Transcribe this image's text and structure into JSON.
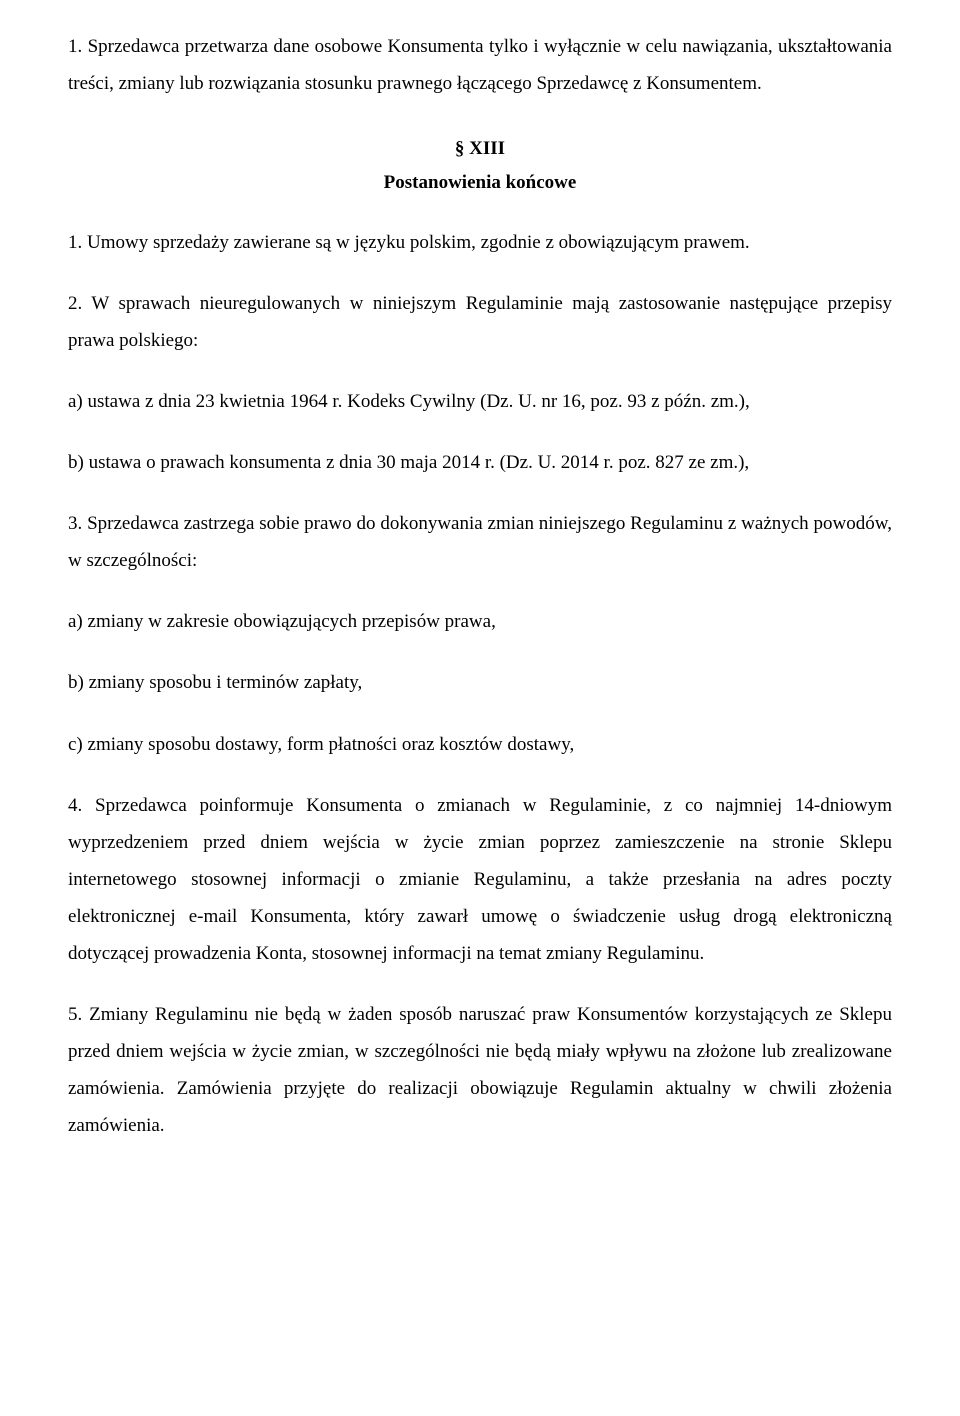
{
  "intro_para": "1. Sprzedawca przetwarza dane osobowe Konsumenta tylko i wyłącznie w celu nawiązania, ukształtowania treści, zmiany lub rozwiązania stosunku prawnego łączącego Sprzedawcę z Konsumentem.",
  "section": {
    "number": "§ XIII",
    "title": "Postanowienia końcowe"
  },
  "paragraphs": {
    "p1": "1. Umowy sprzedaży zawierane są w języku polskim, zgodnie z obowiązującym prawem.",
    "p2": "2. W sprawach nieuregulowanych w niniejszym Regulaminie mają zastosowanie następujące przepisy prawa polskiego:",
    "p2a": "a) ustawa z dnia 23 kwietnia 1964 r. Kodeks Cywilny (Dz. U. nr 16, poz. 93 z późn. zm.),",
    "p2b": "b) ustawa o prawach konsumenta z dnia 30 maja 2014 r. (Dz. U. 2014 r. poz. 827 ze zm.),",
    "p3": "3. Sprzedawca zastrzega sobie prawo do dokonywania zmian niniejszego Regulaminu z ważnych powodów, w szczególności:",
    "p3a": "a) zmiany w zakresie obowiązujących przepisów prawa,",
    "p3b": "b) zmiany sposobu i terminów zapłaty,",
    "p3c": "c) zmiany sposobu dostawy, form płatności oraz kosztów dostawy,",
    "p4": "4. Sprzedawca poinformuje Konsumenta o zmianach w Regulaminie, z co najmniej 14-dniowym wyprzedzeniem przed dniem wejścia w życie zmian poprzez zamieszczenie na stronie Sklepu internetowego stosownej informacji o zmianie Regulaminu, a także przesłania na adres poczty elektronicznej e-mail Konsumenta, który zawarł umowę o świadczenie usług drogą elektroniczną dotyczącej prowadzenia Konta, stosownej informacji na temat zmiany Regulaminu.",
    "p5": "5. Zmiany Regulaminu nie będą w żaden sposób naruszać praw Konsumentów korzystających ze Sklepu przed dniem wejścia w życie zmian, w szczególności nie będą miały wpływu na złożone lub zrealizowane zamówienia. Zamówienia przyjęte do realizacji obowiązuje Regulamin aktualny w chwili złożenia zamówienia."
  }
}
